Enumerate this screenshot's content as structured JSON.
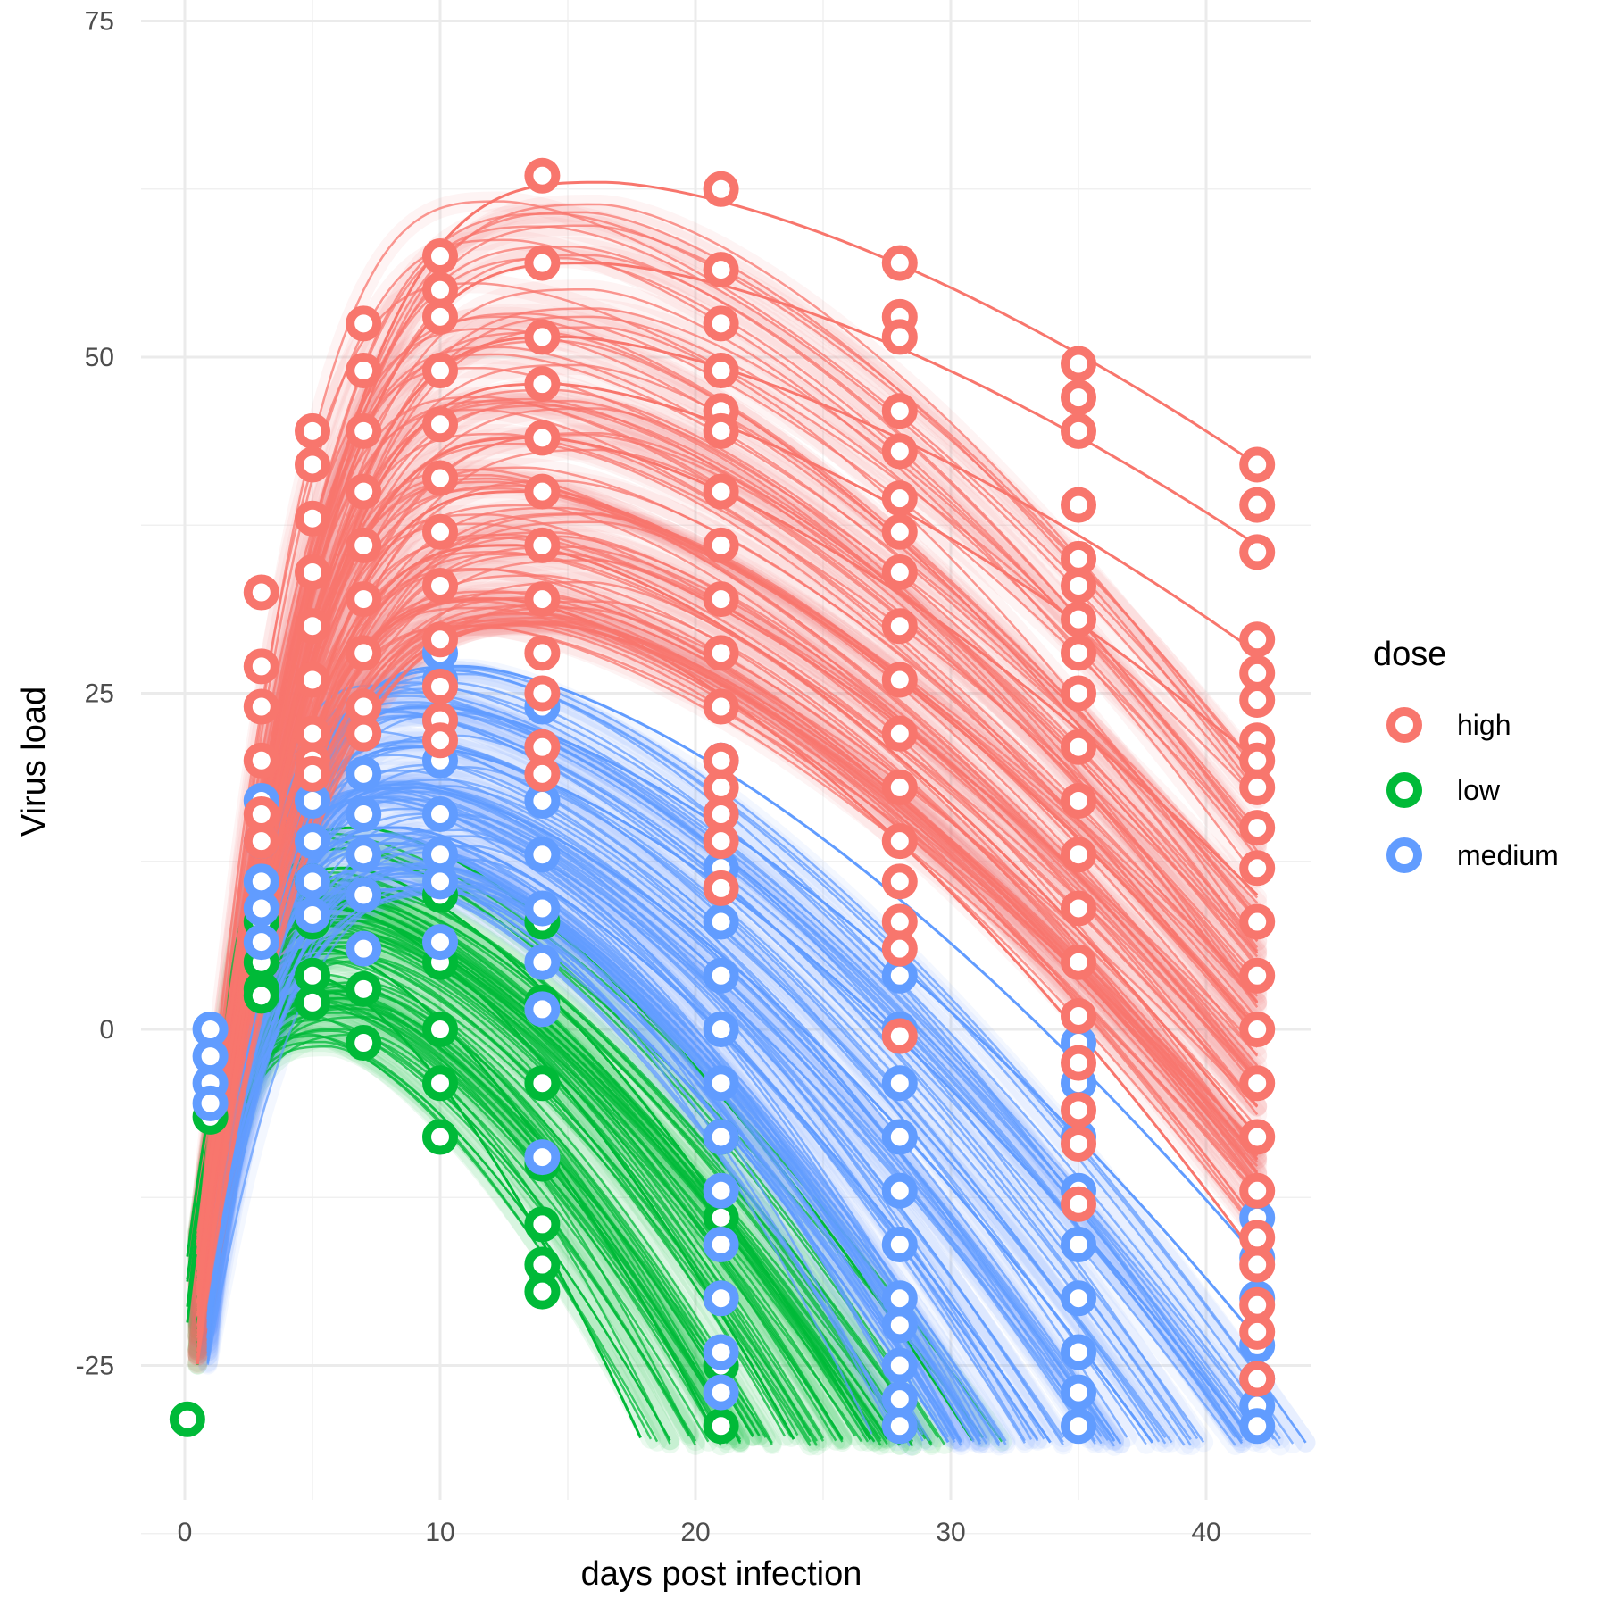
{
  "chart_data": {
    "type": "line",
    "xlabel": "days post infection",
    "ylabel": "Virus load",
    "xlim": [
      -1.5,
      44
    ],
    "ylim": [
      -35,
      75
    ],
    "xticks": [
      0,
      10,
      20,
      30,
      40
    ],
    "yticks": [
      -25,
      0,
      25,
      50,
      75
    ],
    "x_tick_labels": [
      "0",
      "10",
      "20",
      "30",
      "40"
    ],
    "y_tick_labels": [
      "-25",
      "0",
      "25",
      "50",
      "75"
    ],
    "grid": true,
    "legend_position": "right",
    "legend_title": "dose",
    "observation_days": [
      0.1,
      1,
      3,
      5,
      7,
      10,
      14,
      21,
      28,
      35,
      42
    ],
    "series": [
      {
        "name": "high",
        "color": "#F8766D",
        "peak_range": [
          30,
          63
        ],
        "trajectories": [
          {
            "peak": 63,
            "peak_day": 16.5,
            "day42": 42
          },
          {
            "peak": 57,
            "peak_day": 16,
            "day42": 36
          },
          {
            "peak": 51.5,
            "peak_day": 15,
            "day42": 28
          },
          {
            "peak": 48,
            "peak_day": 14.5,
            "day42": 20
          },
          {
            "peak": 44,
            "peak_day": 14,
            "day42": 10
          },
          {
            "peak": 40,
            "peak_day": 13.5,
            "day42": 0
          },
          {
            "peak": 36,
            "peak_day": 13,
            "day42": -8
          },
          {
            "peak": 32,
            "peak_day": 12.5,
            "day42": -17
          }
        ],
        "observed": [
          {
            "day": 3,
            "values": [
              32.5,
              27,
              24,
              20,
              16,
              14
            ]
          },
          {
            "day": 5,
            "values": [
              44.5,
              42,
              38,
              34,
              30,
              26,
              22,
              20,
              19
            ]
          },
          {
            "day": 7,
            "values": [
              52.5,
              49,
              44.5,
              40,
              36,
              32,
              28,
              24,
              22
            ]
          },
          {
            "day": 10,
            "values": [
              57.5,
              55,
              53,
              49,
              45,
              41,
              37,
              33,
              29,
              25.5,
              23,
              21.5
            ]
          },
          {
            "day": 14,
            "values": [
              63.5,
              57,
              51.5,
              48,
              44,
              40,
              36,
              32,
              28,
              25,
              21,
              19
            ]
          },
          {
            "day": 21,
            "values": [
              62.5,
              56.5,
              52.5,
              49,
              46,
              44.5,
              40,
              36,
              32,
              28,
              24,
              20,
              18,
              16,
              14,
              10.5
            ]
          },
          {
            "day": 28,
            "values": [
              57,
              53,
              51.5,
              46,
              43,
              39.5,
              37,
              34,
              30,
              26,
              22,
              18,
              14,
              11,
              8,
              6,
              -0.5
            ]
          },
          {
            "day": 35,
            "values": [
              49.5,
              47,
              44.5,
              39,
              35,
              33,
              30.5,
              28,
              25,
              21,
              17,
              13,
              9,
              5,
              1,
              -2.5,
              -6,
              -8.5,
              -13
            ]
          },
          {
            "day": 42,
            "values": [
              42,
              39,
              35.5,
              29,
              26.5,
              24.5,
              21.5,
              20,
              18,
              15,
              12,
              8,
              4,
              0,
              -4,
              -8,
              -12,
              -15.5,
              -17.5,
              -20.5,
              -22.5,
              -26
            ]
          }
        ]
      },
      {
        "name": "low",
        "color": "#00BA38",
        "peak_range": [
          -2,
          15
        ],
        "trajectories": [
          {
            "peak": 15,
            "peak_day": 7,
            "end_day": 31
          },
          {
            "peak": 12,
            "peak_day": 6.5,
            "end_day": 27
          },
          {
            "peak": 9,
            "peak_day": 6,
            "end_day": 24
          },
          {
            "peak": 6,
            "peak_day": 5.5,
            "end_day": 21
          },
          {
            "peak": 4,
            "peak_day": 5,
            "end_day": 18
          }
        ],
        "observed": [
          {
            "day": 0.1,
            "values": [
              -29
            ]
          },
          {
            "day": 1,
            "values": [
              -6.5
            ]
          },
          {
            "day": 3,
            "values": [
              8,
              5,
              3,
              2.5
            ]
          },
          {
            "day": 5,
            "values": [
              11,
              8,
              4,
              2
            ]
          },
          {
            "day": 7,
            "values": [
              10,
              6,
              3,
              -1
            ]
          },
          {
            "day": 10,
            "values": [
              10,
              5,
              0,
              -4,
              -8
            ]
          },
          {
            "day": 14,
            "values": [
              8,
              2,
              -4,
              -10,
              -14.5,
              -17.5,
              -19.5
            ]
          },
          {
            "day": 21,
            "values": [
              -8,
              -14,
              -20,
              -25,
              -29.5
            ]
          },
          {
            "day": 28,
            "values": [
              -29.5
            ]
          }
        ]
      },
      {
        "name": "medium",
        "color": "#619CFF",
        "peak_range": [
          10,
          27
        ],
        "trajectories": [
          {
            "peak": 27,
            "peak_day": 11,
            "day42": -17
          },
          {
            "peak": 24,
            "peak_day": 10,
            "day42": -23
          },
          {
            "peak": 21,
            "peak_day": 9.5,
            "end_day": 42
          },
          {
            "peak": 18,
            "peak_day": 9,
            "end_day": 38
          },
          {
            "peak": 15,
            "peak_day": 8.5,
            "end_day": 34
          },
          {
            "peak": 12,
            "peak_day": 8,
            "end_day": 30
          }
        ],
        "observed": [
          {
            "day": 1,
            "values": [
              0,
              -2,
              -4,
              -5.5
            ]
          },
          {
            "day": 3,
            "values": [
              17,
              14,
              11,
              9,
              6.5
            ]
          },
          {
            "day": 5,
            "values": [
              20,
              17,
              14,
              11,
              8.5
            ]
          },
          {
            "day": 7,
            "values": [
              22,
              19,
              16,
              13,
              10,
              6
            ]
          },
          {
            "day": 10,
            "values": [
              28,
              26,
              23,
              20,
              16,
              13,
              11,
              6.5
            ]
          },
          {
            "day": 14,
            "values": [
              24,
              21,
              17,
              13,
              9,
              5,
              1.5,
              -9.5
            ]
          },
          {
            "day": 21,
            "values": [
              20,
              16,
              12,
              8,
              4,
              0,
              -4,
              -8,
              -12,
              -16,
              -20,
              -24,
              -27
            ]
          },
          {
            "day": 28,
            "values": [
              4,
              0,
              -4,
              -8,
              -12,
              -16,
              -20,
              -22,
              -25,
              -27.5,
              -29.5
            ]
          },
          {
            "day": 35,
            "values": [
              -1,
              -4,
              -8,
              -12,
              -16,
              -20,
              -24,
              -27,
              -29.5
            ]
          },
          {
            "day": 42,
            "values": [
              -14,
              -17,
              -20,
              -23.5,
              -26,
              -28,
              -29.5
            ]
          }
        ]
      }
    ]
  }
}
